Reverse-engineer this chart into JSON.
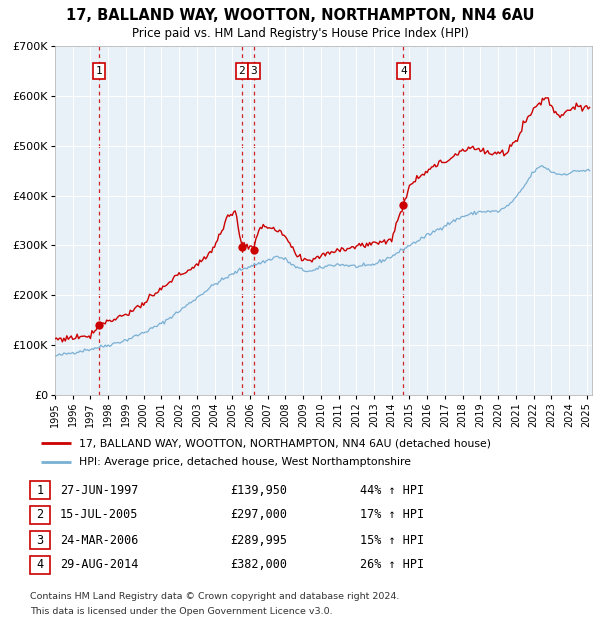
{
  "title": "17, BALLAND WAY, WOOTTON, NORTHAMPTON, NN4 6AU",
  "subtitle": "Price paid vs. HM Land Registry's House Price Index (HPI)",
  "legend_line1": "17, BALLAND WAY, WOOTTON, NORTHAMPTON, NN4 6AU (detached house)",
  "legend_line2": "HPI: Average price, detached house, West Northamptonshire",
  "footer1": "Contains HM Land Registry data © Crown copyright and database right 2024.",
  "footer2": "This data is licensed under the Open Government Licence v3.0.",
  "sale_markers": [
    {
      "label": "1",
      "date": "1997-06-27",
      "price": 139950,
      "x": 1997.49
    },
    {
      "label": "2",
      "date": "2005-07-15",
      "price": 297000,
      "x": 2005.54
    },
    {
      "label": "3",
      "date": "2006-03-24",
      "price": 289995,
      "x": 2006.23
    },
    {
      "label": "4",
      "date": "2014-08-29",
      "price": 382000,
      "x": 2014.66
    }
  ],
  "sale_table": [
    {
      "num": "1",
      "date": "27-JUN-1997",
      "price": "£139,950",
      "pct": "44% ↑ HPI"
    },
    {
      "num": "2",
      "date": "15-JUL-2005",
      "price": "£297,000",
      "pct": "17% ↑ HPI"
    },
    {
      "num": "3",
      "date": "24-MAR-2006",
      "price": "£289,995",
      "pct": "15% ↑ HPI"
    },
    {
      "num": "4",
      "date": "29-AUG-2014",
      "price": "£382,000",
      "pct": "26% ↑ HPI"
    }
  ],
  "red_line_color": "#cc0000",
  "blue_line_color": "#7ab0d4",
  "plot_bg_color": "#e8f0f8",
  "grid_color": "#ffffff",
  "dashed_color": "#cc0000",
  "marker_color": "#cc0000",
  "marker_box_color": "#cc0000",
  "ylim": [
    0,
    700000
  ],
  "xlim_start": 1995.0,
  "xlim_end": 2025.3,
  "hpi_key_points": [
    [
      1995.0,
      78000
    ],
    [
      1996.0,
      85000
    ],
    [
      1997.0,
      92000
    ],
    [
      1998.0,
      100000
    ],
    [
      1999.0,
      110000
    ],
    [
      2000.0,
      125000
    ],
    [
      2001.0,
      143000
    ],
    [
      2002.0,
      168000
    ],
    [
      2003.0,
      195000
    ],
    [
      2004.0,
      222000
    ],
    [
      2005.0,
      242000
    ],
    [
      2005.5,
      252000
    ],
    [
      2006.0,
      258000
    ],
    [
      2007.0,
      270000
    ],
    [
      2007.5,
      278000
    ],
    [
      2008.0,
      272000
    ],
    [
      2008.5,
      258000
    ],
    [
      2009.0,
      250000
    ],
    [
      2009.5,
      248000
    ],
    [
      2010.0,
      255000
    ],
    [
      2010.5,
      260000
    ],
    [
      2011.0,
      262000
    ],
    [
      2012.0,
      258000
    ],
    [
      2012.5,
      258000
    ],
    [
      2013.0,
      262000
    ],
    [
      2014.0,
      278000
    ],
    [
      2015.0,
      300000
    ],
    [
      2016.0,
      320000
    ],
    [
      2017.0,
      340000
    ],
    [
      2018.0,
      358000
    ],
    [
      2019.0,
      368000
    ],
    [
      2020.0,
      368000
    ],
    [
      2020.5,
      378000
    ],
    [
      2021.0,
      395000
    ],
    [
      2021.5,
      420000
    ],
    [
      2022.0,
      448000
    ],
    [
      2022.5,
      460000
    ],
    [
      2023.0,
      448000
    ],
    [
      2023.5,
      442000
    ],
    [
      2024.0,
      445000
    ],
    [
      2024.5,
      450000
    ],
    [
      2025.0,
      450000
    ]
  ],
  "red_key_points": [
    [
      1995.0,
      112000
    ],
    [
      1995.5,
      113000
    ],
    [
      1996.0,
      115000
    ],
    [
      1996.5,
      118000
    ],
    [
      1997.0,
      120000
    ],
    [
      1997.49,
      139950
    ],
    [
      1997.6,
      142000
    ],
    [
      1998.0,
      148000
    ],
    [
      1999.0,
      162000
    ],
    [
      2000.0,
      183000
    ],
    [
      2001.0,
      212000
    ],
    [
      2002.0,
      242000
    ],
    [
      2003.0,
      258000
    ],
    [
      2004.0,
      298000
    ],
    [
      2004.7,
      355000
    ],
    [
      2005.2,
      368000
    ],
    [
      2005.54,
      297000
    ],
    [
      2005.7,
      302000
    ],
    [
      2006.0,
      298000
    ],
    [
      2006.23,
      289995
    ],
    [
      2006.5,
      335000
    ],
    [
      2006.8,
      342000
    ],
    [
      2007.0,
      338000
    ],
    [
      2007.5,
      328000
    ],
    [
      2008.0,
      318000
    ],
    [
      2008.5,
      285000
    ],
    [
      2009.0,
      268000
    ],
    [
      2009.5,
      272000
    ],
    [
      2010.0,
      280000
    ],
    [
      2011.0,
      292000
    ],
    [
      2012.0,
      298000
    ],
    [
      2013.0,
      305000
    ],
    [
      2014.0,
      312000
    ],
    [
      2014.66,
      382000
    ],
    [
      2015.0,
      422000
    ],
    [
      2016.0,
      452000
    ],
    [
      2017.0,
      468000
    ],
    [
      2018.0,
      492000
    ],
    [
      2018.5,
      498000
    ],
    [
      2019.0,
      490000
    ],
    [
      2019.5,
      485000
    ],
    [
      2020.0,
      482000
    ],
    [
      2020.5,
      488000
    ],
    [
      2021.0,
      510000
    ],
    [
      2021.5,
      548000
    ],
    [
      2022.0,
      572000
    ],
    [
      2022.5,
      592000
    ],
    [
      2022.8,
      598000
    ],
    [
      2023.0,
      578000
    ],
    [
      2023.3,
      565000
    ],
    [
      2023.5,
      560000
    ],
    [
      2023.8,
      568000
    ],
    [
      2024.0,
      572000
    ],
    [
      2024.3,
      580000
    ],
    [
      2024.5,
      578000
    ],
    [
      2024.8,
      572000
    ],
    [
      2025.0,
      575000
    ]
  ]
}
